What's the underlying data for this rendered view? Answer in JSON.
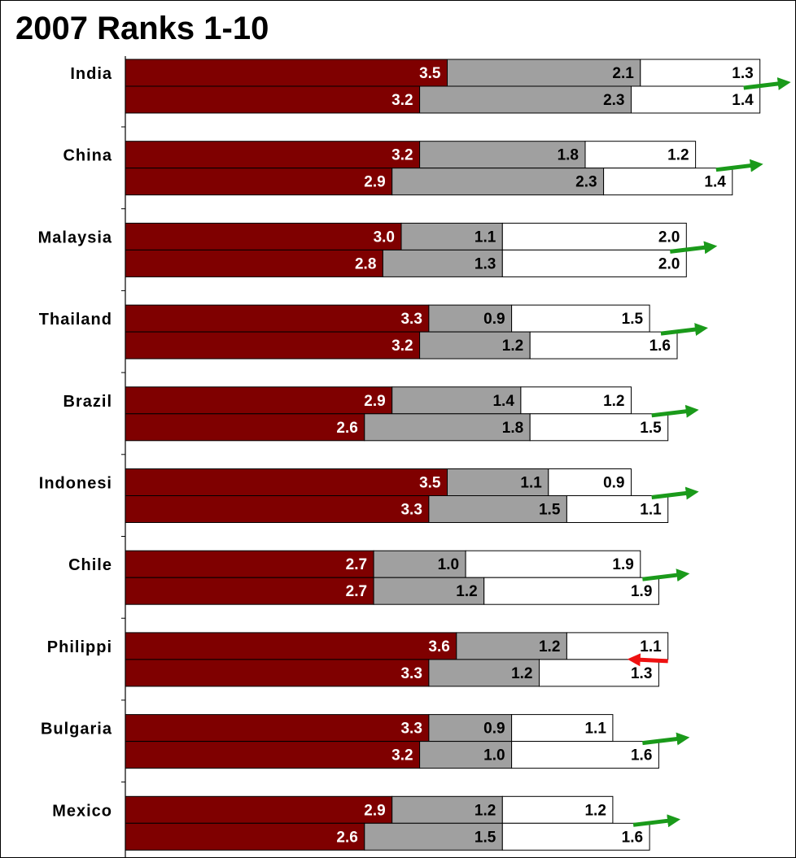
{
  "chart_data": {
    "type": "bar",
    "orientation": "horizontal",
    "stacked": true,
    "title": "2007 Ranks 1-10",
    "xlabel": "",
    "ylabel": "",
    "grid": false,
    "legend": "none",
    "categories": [
      "India",
      "China",
      "Malaysia",
      "Thailand",
      "Brazil",
      "Indonesi",
      "Chile",
      "Philippi",
      "Bulgaria",
      "Mexico"
    ],
    "rows": [
      {
        "category": "India",
        "bars": [
          {
            "values": [
              3.5,
              2.1,
              1.3
            ],
            "labels": [
              "3.5",
              "2.1",
              "1.3"
            ]
          },
          {
            "values": [
              3.2,
              2.3,
              1.4
            ],
            "labels": [
              "3.2",
              "2.3",
              "1.4"
            ]
          }
        ],
        "trend": "up"
      },
      {
        "category": "China",
        "bars": [
          {
            "values": [
              3.2,
              1.8,
              1.2
            ],
            "labels": [
              "3.2",
              "1.8",
              "1.2"
            ]
          },
          {
            "values": [
              2.9,
              2.3,
              1.4
            ],
            "labels": [
              "2.9",
              "2.3",
              "1.4"
            ]
          }
        ],
        "trend": "up"
      },
      {
        "category": "Malaysia",
        "bars": [
          {
            "values": [
              3.0,
              1.1,
              2.0
            ],
            "labels": [
              "3.0",
              "1.1",
              "2.0"
            ]
          },
          {
            "values": [
              2.8,
              1.3,
              2.0
            ],
            "labels": [
              "2.8",
              "1.3",
              "2.0"
            ]
          }
        ],
        "trend": "up"
      },
      {
        "category": "Thailand",
        "bars": [
          {
            "values": [
              3.3,
              0.9,
              1.5
            ],
            "labels": [
              "3.3",
              "0.9",
              "1.5"
            ]
          },
          {
            "values": [
              3.2,
              1.2,
              1.6
            ],
            "labels": [
              "3.2",
              "1.2",
              "1.6"
            ]
          }
        ],
        "trend": "up"
      },
      {
        "category": "Brazil",
        "bars": [
          {
            "values": [
              2.9,
              1.4,
              1.2
            ],
            "labels": [
              "2.9",
              "1.4",
              "1.2"
            ]
          },
          {
            "values": [
              2.6,
              1.8,
              1.5
            ],
            "labels": [
              "2.6",
              "1.8",
              "1.5"
            ]
          }
        ],
        "trend": "up"
      },
      {
        "category": "Indonesi",
        "bars": [
          {
            "values": [
              3.5,
              1.1,
              0.9
            ],
            "labels": [
              "3.5",
              "1.1",
              "0.9"
            ]
          },
          {
            "values": [
              3.3,
              1.5,
              1.1
            ],
            "labels": [
              "3.3",
              "1.5",
              "1.1"
            ]
          }
        ],
        "trend": "up"
      },
      {
        "category": "Chile",
        "bars": [
          {
            "values": [
              2.7,
              1.0,
              1.9
            ],
            "labels": [
              "2.7",
              "1.0",
              "1.9"
            ]
          },
          {
            "values": [
              2.7,
              1.2,
              1.9
            ],
            "labels": [
              "2.7",
              "1.2",
              "1.9"
            ]
          }
        ],
        "trend": "up"
      },
      {
        "category": "Philippi",
        "bars": [
          {
            "values": [
              3.6,
              1.2,
              1.1
            ],
            "labels": [
              "3.6",
              "1.2",
              "1.1"
            ]
          },
          {
            "values": [
              3.3,
              1.2,
              1.3
            ],
            "labels": [
              "3.3",
              "1.2",
              "1.3"
            ]
          }
        ],
        "trend": "down"
      },
      {
        "category": "Bulgaria",
        "bars": [
          {
            "values": [
              3.3,
              0.9,
              1.1
            ],
            "labels": [
              "3.3",
              "0.9",
              "1.1"
            ]
          },
          {
            "values": [
              3.2,
              1.0,
              1.6
            ],
            "labels": [
              "3.2",
              "1.0",
              "1.6"
            ]
          }
        ],
        "trend": "up"
      },
      {
        "category": "Mexico",
        "bars": [
          {
            "values": [
              2.9,
              1.2,
              1.2
            ],
            "labels": [
              "2.9",
              "1.2",
              "1.2"
            ]
          },
          {
            "values": [
              2.6,
              1.5,
              1.6
            ],
            "labels": [
              "2.6",
              "1.5",
              "1.6"
            ]
          }
        ],
        "trend": "up"
      }
    ],
    "segment_colors": [
      "#7f0000",
      "#a0a0a0",
      "#ffffff"
    ],
    "label_colors": [
      "#ffffff",
      "#000000",
      "#000000"
    ],
    "trend_colors": {
      "up": "#1a9a1a",
      "down": "#ee1111"
    }
  }
}
